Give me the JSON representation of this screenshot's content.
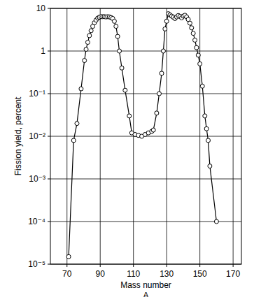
{
  "chart_data": {
    "type": "line",
    "x_label": "Mass number\nA",
    "y_label": "Fission yield, percent",
    "x": [
      71,
      74,
      76,
      78.5,
      80.5,
      81.5,
      82.5,
      83.5,
      84.5,
      85.5,
      86.5,
      87.5,
      88.5,
      89.5,
      90.5,
      91.5,
      92.5,
      93.5,
      94.5,
      95.5,
      96.5,
      97.5,
      98.5,
      99.5,
      100.5,
      101.5,
      103,
      105,
      107.5,
      109,
      111,
      113,
      115,
      117,
      119,
      121,
      122,
      124,
      125.5,
      127,
      128,
      129,
      130,
      131,
      132,
      133,
      134,
      135,
      136,
      137,
      138,
      139,
      140,
      141,
      142,
      143,
      144,
      145,
      146,
      147,
      148,
      149,
      150,
      151.5,
      153,
      154,
      155,
      156,
      160
    ],
    "values": [
      1.5e-05,
      0.008,
      0.02,
      0.13,
      0.6,
      1.1,
      1.6,
      2.3,
      3.0,
      3.8,
      4.6,
      5.3,
      5.9,
      6.2,
      6.4,
      6.4,
      6.4,
      6.3,
      6.4,
      6.3,
      6.1,
      5.8,
      5.0,
      3.8,
      2.2,
      1.0,
      0.4,
      0.12,
      0.03,
      0.012,
      0.011,
      0.0105,
      0.01,
      0.011,
      0.012,
      0.013,
      0.014,
      0.035,
      0.1,
      0.3,
      1.0,
      3.3,
      5.0,
      7.5,
      7.0,
      6.6,
      6.2,
      5.8,
      6.3,
      6.8,
      6.5,
      6.0,
      6.6,
      6.9,
      6.3,
      5.5,
      4.5,
      3.5,
      2.6,
      1.8,
      1.2,
      0.8,
      0.5,
      0.15,
      0.03,
      0.015,
      0.008,
      0.002,
      0.0001
    ],
    "color": "#000000",
    "marker": "open-circle",
    "xlim": [
      60,
      175
    ],
    "xticks": [
      70,
      90,
      110,
      130,
      150,
      170
    ],
    "ylim": [
      1e-05,
      10
    ],
    "yticks": [
      {
        "value": 1e-05,
        "label": "10⁻⁵"
      },
      {
        "value": 0.0001,
        "label": "10⁻⁴"
      },
      {
        "value": 0.001,
        "label": "10⁻³"
      },
      {
        "value": 0.01,
        "label": "10⁻²"
      },
      {
        "value": 0.1,
        "label": "10⁻¹"
      },
      1,
      10
    ],
    "log": "y",
    "grid": true
  }
}
